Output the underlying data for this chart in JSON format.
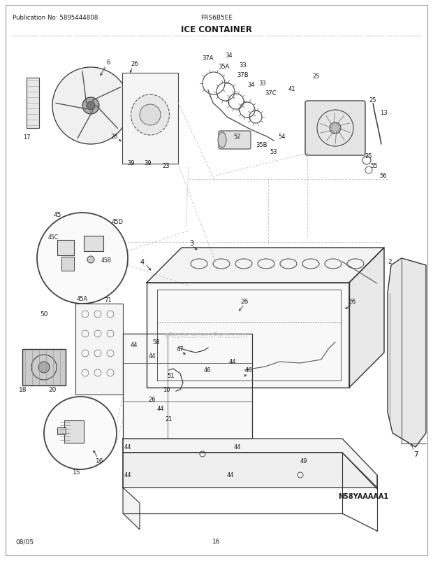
{
  "pub_no": "Publication No: 5895444808",
  "model": "FRS6B5EE",
  "title": "ICE CONTAINER",
  "diagram_code": "N58YAAAAA1",
  "date": "08/05",
  "page": "16",
  "bg_color": "#ffffff",
  "text_color": "#1a1a1a",
  "fig_width": 6.2,
  "fig_height": 8.03,
  "dpi": 100
}
